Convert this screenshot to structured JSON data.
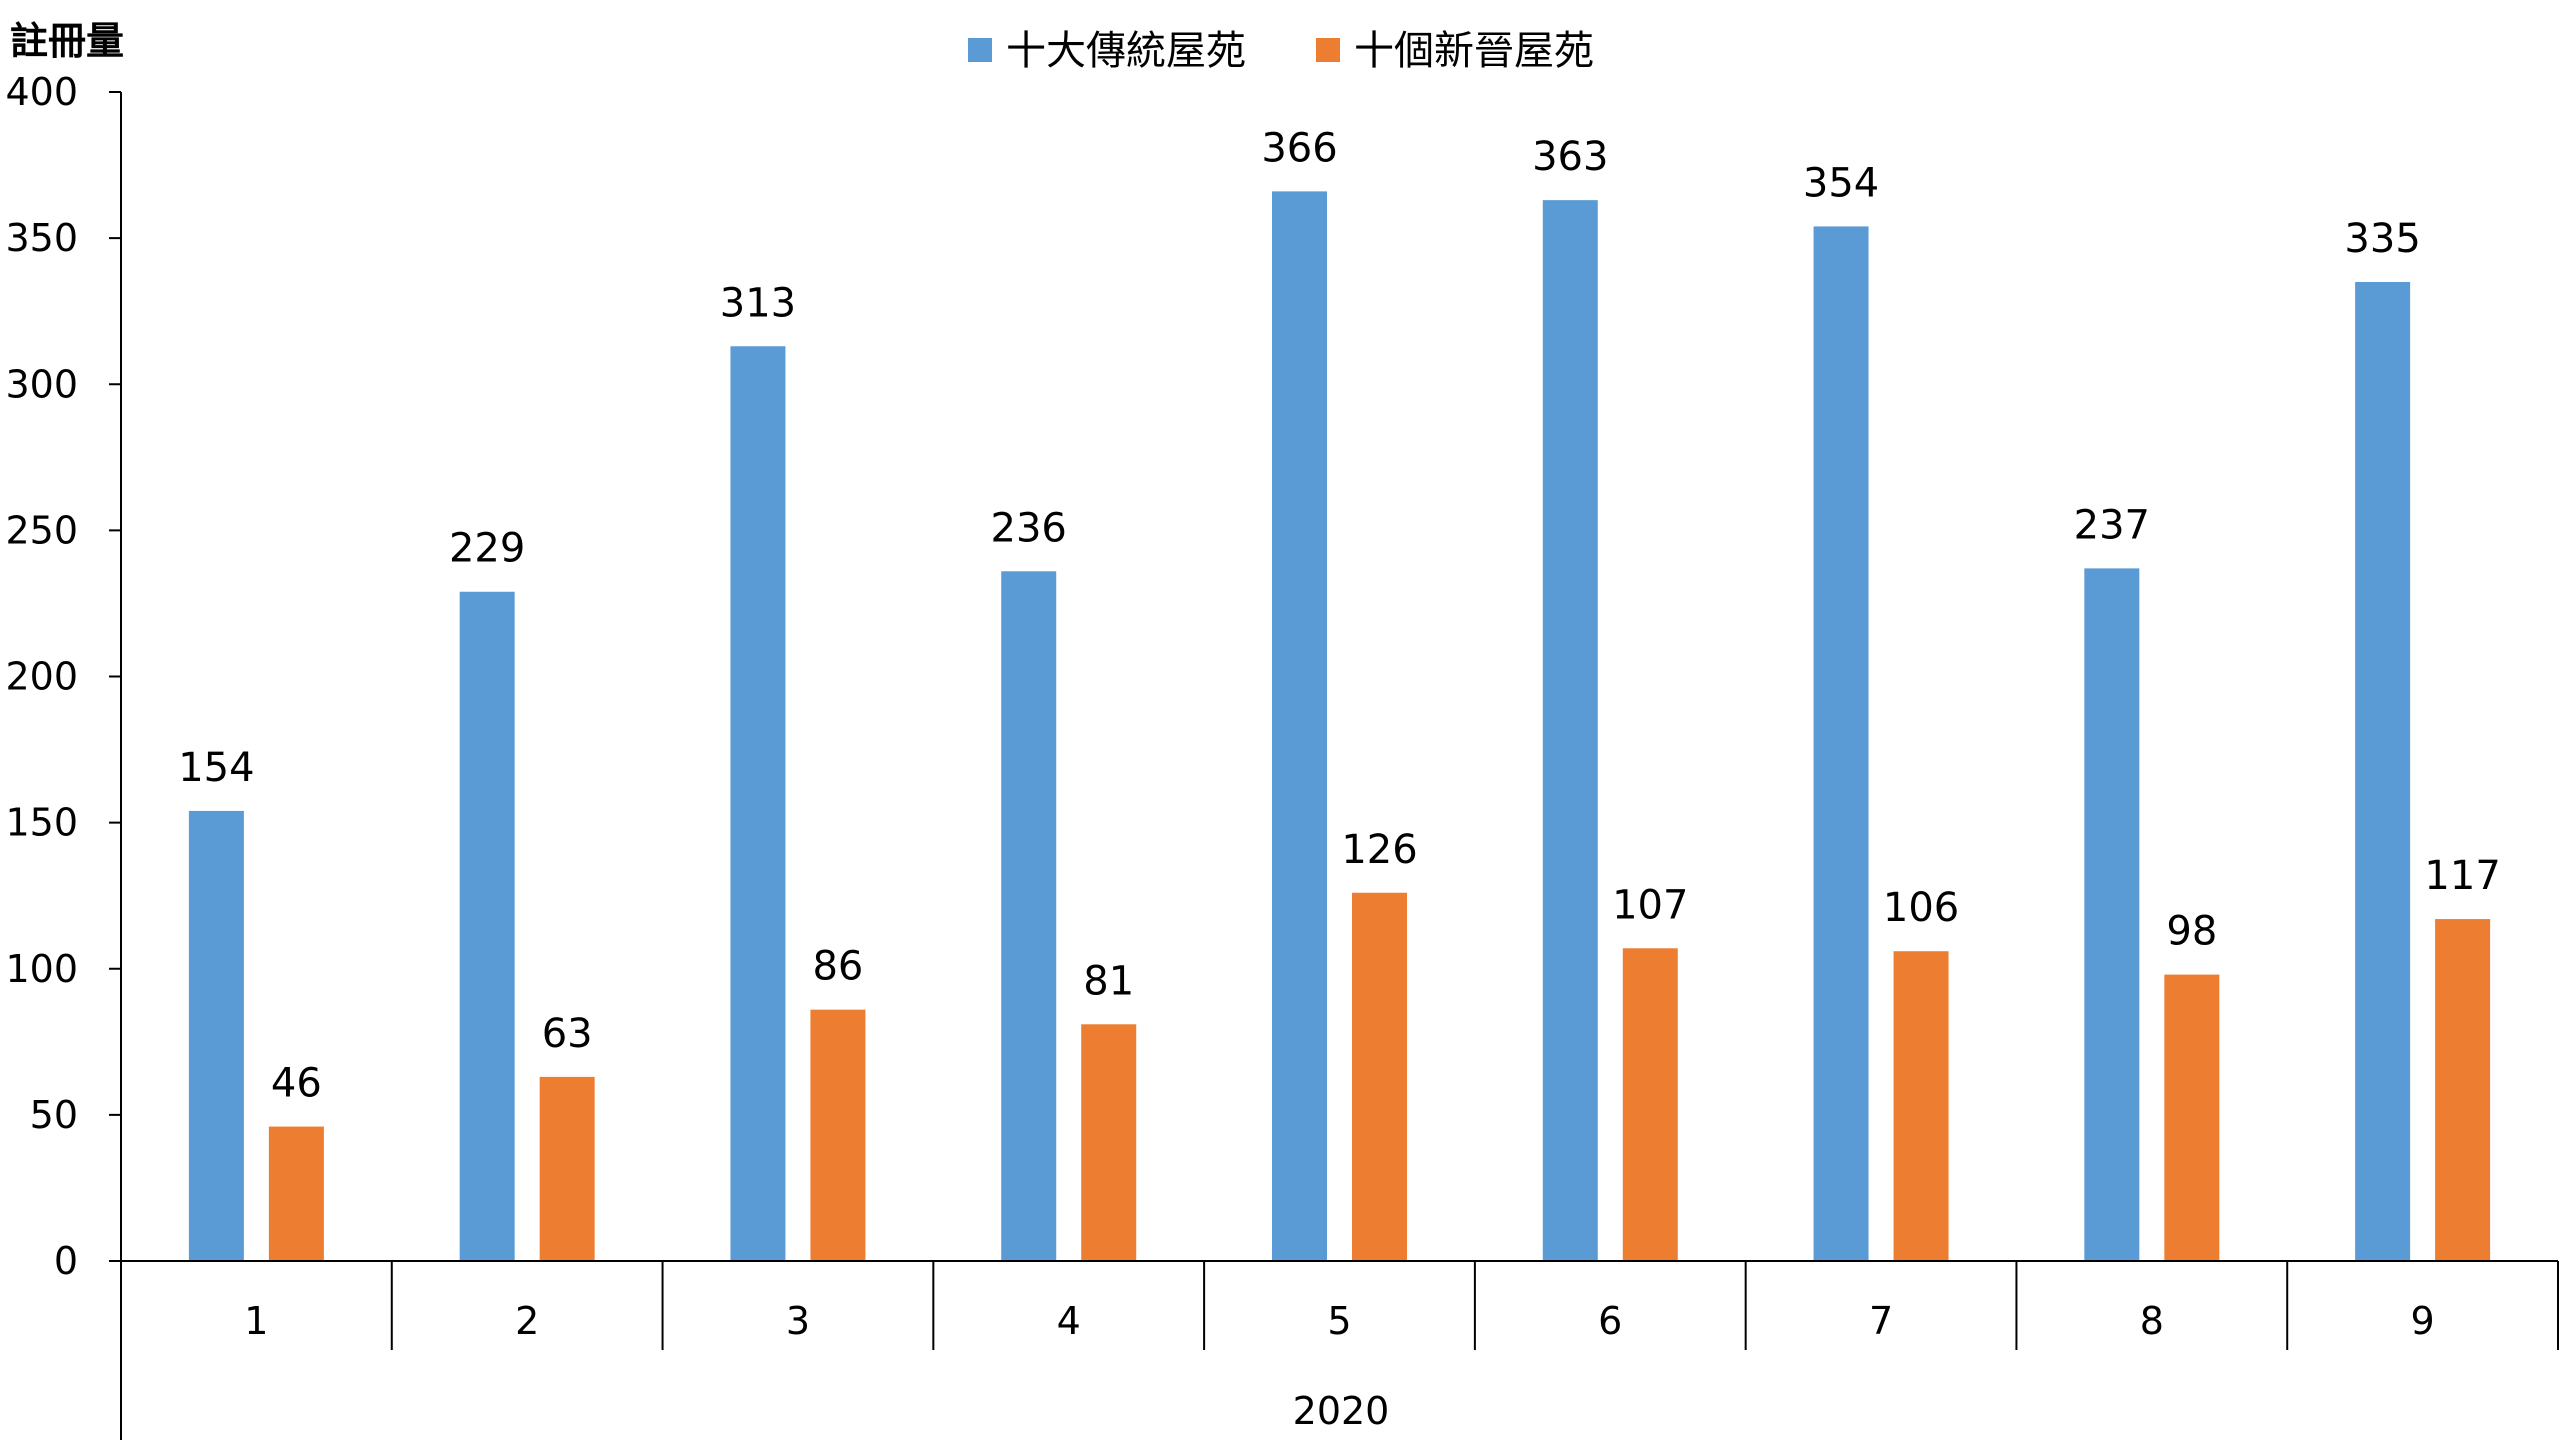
{
  "chart_data": {
    "type": "bar",
    "title": "",
    "ylabel": "註冊量",
    "xlabel": "2020",
    "ylim": [
      0,
      400
    ],
    "yticks": [
      0,
      50,
      100,
      150,
      200,
      250,
      300,
      350,
      400
    ],
    "categories": [
      "1",
      "2",
      "3",
      "4",
      "5",
      "6",
      "7",
      "8",
      "9"
    ],
    "legend_position": "top-center",
    "grid": false,
    "series": [
      {
        "name": "十大傳統屋苑",
        "color": "#5B9BD5",
        "values": [
          154,
          229,
          313,
          236,
          366,
          363,
          354,
          237,
          335
        ]
      },
      {
        "name": "十個新晉屋苑",
        "color": "#ED7D31",
        "values": [
          46,
          63,
          86,
          81,
          126,
          107,
          106,
          98,
          117
        ]
      }
    ]
  }
}
